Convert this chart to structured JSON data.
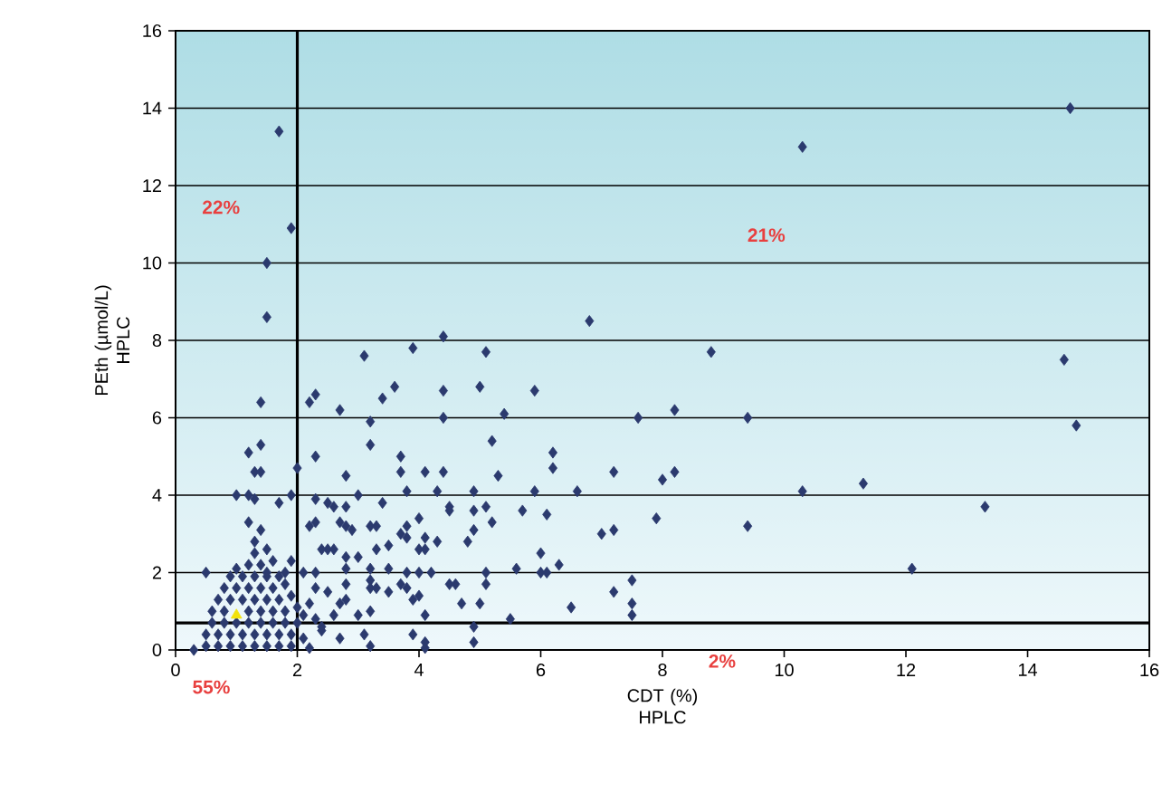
{
  "chart_data": {
    "type": "scatter",
    "xlabel": "CDT (%) HPLC",
    "ylabel": "PEth (µmol/L) HPLC",
    "xlim": [
      0,
      16
    ],
    "ylim": [
      0,
      16
    ],
    "xticks": [
      0,
      2,
      4,
      6,
      8,
      10,
      12,
      14,
      16
    ],
    "yticks": [
      0,
      2,
      4,
      6,
      8,
      10,
      12,
      14,
      16
    ],
    "grid": "y",
    "annotations": [
      "22%",
      "21%",
      "55%",
      "2%"
    ],
    "ref_lines": [
      {
        "axis": "x",
        "value": 2,
        "color": "#000000"
      },
      {
        "axis": "y",
        "value": 0.7,
        "color": "#000000"
      }
    ],
    "series": [
      {
        "color": "#2b3a6e",
        "marker": "diamond",
        "x": [
          14.7,
          10.3,
          6.8,
          8.8,
          14.6,
          5.9,
          7.6,
          8.2,
          9.4,
          14.8,
          6.2,
          6.2,
          7.2,
          8.0,
          8.2,
          5.9,
          6.6,
          10.3,
          11.3,
          5.7,
          6.1,
          7.9,
          9.4,
          13.3,
          7.0,
          7.2,
          6.0,
          5.6,
          6.0,
          6.1,
          6.3,
          7.5,
          12.1,
          6.5,
          7.2,
          7.5,
          7.5,
          5.5,
          1.7,
          1.9,
          1.5,
          1.5,
          1.4,
          1.2,
          1.4,
          1.3,
          1.4,
          1.2,
          1.3,
          1.0,
          1.7,
          1.9,
          2.0,
          3.1,
          3.9,
          4.4,
          5.1,
          2.3,
          2.2,
          2.7,
          3.6,
          3.4,
          4.4,
          5.0,
          4.4,
          3.2,
          5.4,
          3.2,
          2.3,
          5.2,
          3.7,
          3.7,
          4.1,
          4.4,
          5.3,
          2.8,
          4.3,
          3.8,
          3.0,
          2.3,
          4.9,
          3.4,
          5.1,
          4.5,
          4.5,
          2.5,
          2.6,
          2.8,
          4.9,
          5.2,
          4.0,
          3.8,
          2.7,
          2.8,
          2.9,
          3.2,
          3.3,
          2.3,
          2.2,
          3.7,
          3.8,
          4.1,
          4.3,
          4.8,
          4.9,
          2.5,
          2.4,
          2.6,
          2.8,
          3.0,
          3.3,
          3.5,
          4.0,
          4.1,
          5.1,
          5.1,
          4.5,
          4.6,
          4.2,
          3.8,
          4.0,
          3.5,
          3.2,
          3.2,
          3.2,
          3.3,
          3.5,
          2.8,
          2.8,
          2.3,
          2.1,
          2.3,
          2.5,
          3.7,
          3.8,
          3.9,
          4.0,
          4.1,
          4.7,
          5.0,
          4.9,
          4.9,
          4.1,
          4.1,
          3.9,
          3.2,
          3.1,
          2.7,
          2.2,
          2.3,
          2.4,
          2.4,
          2.8,
          2.7,
          3.0,
          3.2,
          2.2,
          2.1,
          2.6,
          0.3,
          0.5,
          0.7,
          0.9,
          1.1,
          1.3,
          1.5,
          1.7,
          1.9,
          0.5,
          0.7,
          0.9,
          1.1,
          1.3,
          1.5,
          1.7,
          1.9,
          2.1,
          0.6,
          0.8,
          1.0,
          1.2,
          1.4,
          1.6,
          1.8,
          2.0,
          0.6,
          0.8,
          1.2,
          1.4,
          1.6,
          1.8,
          2.0,
          0.7,
          0.9,
          1.1,
          1.3,
          1.5,
          1.7,
          1.9,
          0.8,
          1.0,
          1.2,
          1.4,
          1.6,
          1.8,
          0.9,
          1.1,
          1.3,
          1.5,
          1.7,
          0.5,
          1.2,
          1.4,
          1.6,
          1.9,
          1.3,
          1.5,
          1.3,
          1.4,
          1.2,
          1.5,
          1.8,
          1.0
        ],
        "values": [
          14.0,
          13.0,
          8.5,
          7.7,
          7.5,
          6.7,
          6.0,
          6.2,
          6.0,
          5.8,
          5.1,
          4.7,
          4.6,
          4.4,
          4.6,
          4.1,
          4.1,
          4.1,
          4.3,
          3.6,
          3.5,
          3.4,
          3.2,
          3.7,
          3.0,
          3.1,
          2.5,
          2.1,
          2.0,
          2.0,
          2.2,
          1.8,
          2.1,
          1.1,
          1.5,
          1.2,
          0.9,
          0.8,
          13.4,
          10.9,
          10.0,
          8.6,
          6.4,
          5.1,
          5.3,
          4.6,
          4.6,
          4.0,
          3.9,
          4.0,
          3.8,
          4.0,
          4.7,
          7.6,
          7.8,
          8.1,
          7.7,
          6.6,
          6.4,
          6.2,
          6.8,
          6.5,
          6.7,
          6.8,
          6.0,
          5.9,
          6.1,
          5.3,
          5.0,
          5.4,
          5.0,
          4.6,
          4.6,
          4.6,
          4.5,
          4.5,
          4.1,
          4.1,
          4.0,
          3.9,
          4.1,
          3.8,
          3.7,
          3.7,
          3.6,
          3.8,
          3.7,
          3.7,
          3.6,
          3.3,
          3.4,
          3.2,
          3.3,
          3.2,
          3.1,
          3.2,
          3.2,
          3.3,
          3.2,
          3.0,
          2.9,
          2.9,
          2.8,
          2.8,
          3.1,
          2.6,
          2.6,
          2.6,
          2.4,
          2.4,
          2.6,
          2.7,
          2.6,
          2.6,
          2.0,
          1.7,
          1.7,
          1.7,
          2.0,
          2.0,
          2.0,
          2.1,
          2.1,
          1.8,
          1.6,
          1.6,
          1.5,
          2.1,
          1.7,
          2.0,
          2.0,
          1.6,
          1.5,
          1.7,
          1.6,
          1.3,
          1.4,
          0.9,
          1.2,
          1.2,
          0.6,
          0.2,
          0.2,
          0.05,
          0.4,
          0.1,
          0.4,
          0.3,
          0.05,
          0.8,
          0.6,
          0.5,
          1.3,
          1.2,
          0.9,
          1.0,
          1.2,
          0.9,
          0.9,
          0.0,
          0.1,
          0.1,
          0.1,
          0.1,
          0.1,
          0.1,
          0.1,
          0.1,
          0.4,
          0.4,
          0.4,
          0.4,
          0.4,
          0.4,
          0.4,
          0.4,
          0.3,
          0.7,
          0.7,
          0.7,
          0.7,
          0.7,
          0.7,
          0.7,
          0.7,
          1.0,
          1.0,
          1.0,
          1.0,
          1.0,
          1.0,
          1.1,
          1.3,
          1.3,
          1.3,
          1.3,
          1.3,
          1.3,
          1.4,
          1.6,
          1.6,
          1.6,
          1.6,
          1.6,
          1.7,
          1.9,
          1.9,
          1.9,
          1.9,
          1.9,
          2.0,
          2.2,
          2.2,
          2.3,
          2.3,
          2.5,
          2.6,
          2.8,
          3.1,
          3.3,
          2.0,
          2.0,
          2.1
        ]
      },
      {
        "color": "#f2e20c",
        "marker": "triangle",
        "x": [
          1.0
        ],
        "values": [
          0.9
        ]
      }
    ]
  }
}
